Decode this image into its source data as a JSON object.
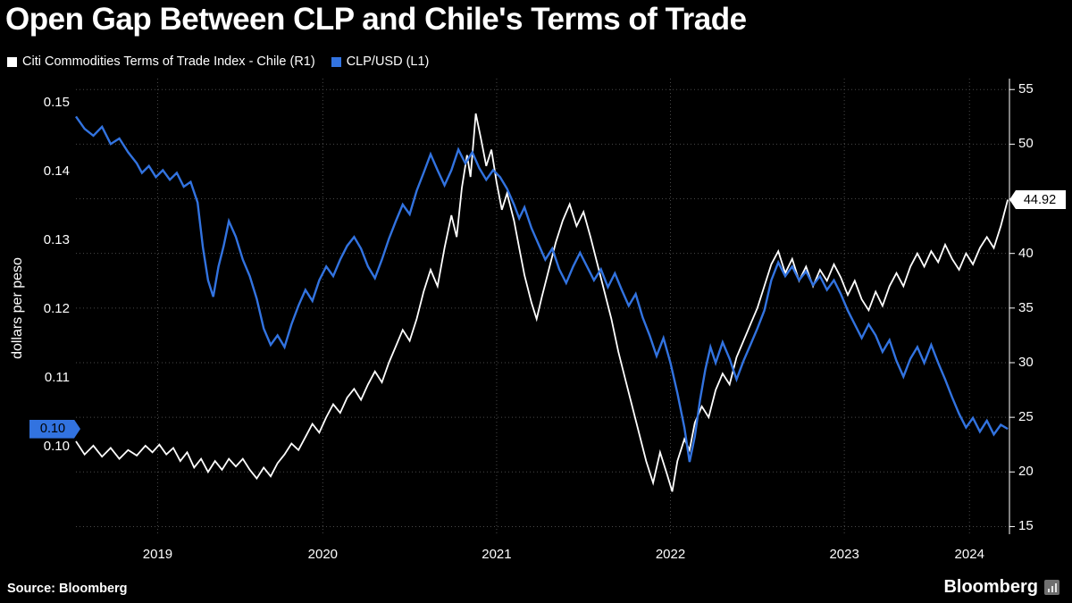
{
  "header": {
    "title": "Open Gap Between CLP and Chile's Terms of Trade"
  },
  "legend": {
    "items": [
      {
        "label": "Citi Commodities Terms of Trade Index - Chile (R1)",
        "color": "#ffffff"
      },
      {
        "label": "CLP/USD (L1)",
        "color": "#3273e0"
      }
    ]
  },
  "footer": {
    "source": "Source: Bloomberg",
    "logo": "Bloomberg"
  },
  "chart_data": {
    "type": "line",
    "title": "Open Gap Between CLP and Chile's Terms of Trade",
    "grid": "dotted",
    "background": "#000000",
    "x_range": [
      2019.08,
      2024.45
    ],
    "x_ticks": [
      {
        "label": "2019",
        "pos": 2019.55
      },
      {
        "label": "2020",
        "pos": 2020.5
      },
      {
        "label": "2021",
        "pos": 2021.5
      },
      {
        "label": "2022",
        "pos": 2022.5
      },
      {
        "label": "2023",
        "pos": 2023.5
      },
      {
        "label": "2024",
        "pos": 2024.22
      }
    ],
    "left_axis": {
      "title": "dollars per peso",
      "range": [
        0.0873,
        0.1535
      ],
      "ticks": [
        0.15,
        0.14,
        0.13,
        0.12,
        0.11,
        0.1
      ],
      "badge": {
        "label": "0.10",
        "value": 0.1026,
        "color": "#3273e0"
      }
    },
    "right_axis": {
      "range": [
        14.3,
        56.0
      ],
      "ticks": [
        55,
        50,
        45,
        40,
        35,
        30,
        25,
        20,
        15
      ],
      "badge": {
        "label": "44.92",
        "value": 44.92,
        "color": "#ffffff"
      }
    },
    "series": [
      {
        "name": "Citi Commodities Terms of Trade Index - Chile (R1)",
        "axis": "right",
        "color": "#ffffff",
        "width": 1.8,
        "points": [
          [
            2019.08,
            22.8
          ],
          [
            2019.13,
            21.6
          ],
          [
            2019.18,
            22.4
          ],
          [
            2019.23,
            21.4
          ],
          [
            2019.28,
            22.2
          ],
          [
            2019.33,
            21.2
          ],
          [
            2019.38,
            22.0
          ],
          [
            2019.43,
            21.5
          ],
          [
            2019.48,
            22.4
          ],
          [
            2019.52,
            21.8
          ],
          [
            2019.56,
            22.5
          ],
          [
            2019.6,
            21.6
          ],
          [
            2019.64,
            22.2
          ],
          [
            2019.68,
            21.0
          ],
          [
            2019.72,
            21.8
          ],
          [
            2019.76,
            20.4
          ],
          [
            2019.8,
            21.2
          ],
          [
            2019.84,
            20.0
          ],
          [
            2019.88,
            21.0
          ],
          [
            2019.92,
            20.2
          ],
          [
            2019.96,
            21.2
          ],
          [
            2020.0,
            20.5
          ],
          [
            2020.04,
            21.2
          ],
          [
            2020.08,
            20.2
          ],
          [
            2020.12,
            19.4
          ],
          [
            2020.16,
            20.4
          ],
          [
            2020.2,
            19.6
          ],
          [
            2020.24,
            20.8
          ],
          [
            2020.28,
            21.6
          ],
          [
            2020.32,
            22.6
          ],
          [
            2020.36,
            22.0
          ],
          [
            2020.4,
            23.2
          ],
          [
            2020.44,
            24.4
          ],
          [
            2020.48,
            23.6
          ],
          [
            2020.52,
            25.0
          ],
          [
            2020.56,
            26.2
          ],
          [
            2020.6,
            25.4
          ],
          [
            2020.64,
            26.8
          ],
          [
            2020.68,
            27.6
          ],
          [
            2020.72,
            26.6
          ],
          [
            2020.76,
            28.0
          ],
          [
            2020.8,
            29.2
          ],
          [
            2020.84,
            28.2
          ],
          [
            2020.88,
            30.0
          ],
          [
            2020.92,
            31.5
          ],
          [
            2020.96,
            33.0
          ],
          [
            2021.0,
            32.0
          ],
          [
            2021.04,
            34.0
          ],
          [
            2021.08,
            36.5
          ],
          [
            2021.12,
            38.5
          ],
          [
            2021.16,
            37.0
          ],
          [
            2021.2,
            40.5
          ],
          [
            2021.24,
            43.5
          ],
          [
            2021.27,
            41.5
          ],
          [
            2021.3,
            46.0
          ],
          [
            2021.33,
            49.0
          ],
          [
            2021.35,
            47.0
          ],
          [
            2021.38,
            52.8
          ],
          [
            2021.41,
            50.5
          ],
          [
            2021.44,
            48.0
          ],
          [
            2021.47,
            49.5
          ],
          [
            2021.5,
            46.5
          ],
          [
            2021.53,
            44.0
          ],
          [
            2021.56,
            45.5
          ],
          [
            2021.6,
            43.0
          ],
          [
            2021.63,
            40.5
          ],
          [
            2021.66,
            38.0
          ],
          [
            2021.7,
            35.5
          ],
          [
            2021.73,
            34.0
          ],
          [
            2021.76,
            36.0
          ],
          [
            2021.8,
            38.5
          ],
          [
            2021.84,
            41.0
          ],
          [
            2021.88,
            43.0
          ],
          [
            2021.92,
            44.5
          ],
          [
            2021.96,
            42.5
          ],
          [
            2022.0,
            43.8
          ],
          [
            2022.04,
            41.5
          ],
          [
            2022.08,
            39.0
          ],
          [
            2022.12,
            36.5
          ],
          [
            2022.16,
            34.0
          ],
          [
            2022.2,
            31.0
          ],
          [
            2022.24,
            28.5
          ],
          [
            2022.28,
            26.0
          ],
          [
            2022.32,
            23.5
          ],
          [
            2022.36,
            21.0
          ],
          [
            2022.4,
            19.0
          ],
          [
            2022.44,
            21.8
          ],
          [
            2022.48,
            19.8
          ],
          [
            2022.51,
            18.2
          ],
          [
            2022.54,
            21.0
          ],
          [
            2022.58,
            23.0
          ],
          [
            2022.61,
            22.0
          ],
          [
            2022.64,
            24.5
          ],
          [
            2022.68,
            26.0
          ],
          [
            2022.72,
            25.0
          ],
          [
            2022.76,
            27.5
          ],
          [
            2022.8,
            29.0
          ],
          [
            2022.84,
            28.0
          ],
          [
            2022.88,
            30.5
          ],
          [
            2022.92,
            32.0
          ],
          [
            2022.96,
            33.5
          ],
          [
            2023.0,
            35.0
          ],
          [
            2023.04,
            37.0
          ],
          [
            2023.08,
            39.0
          ],
          [
            2023.12,
            40.2
          ],
          [
            2023.16,
            38.2
          ],
          [
            2023.2,
            39.5
          ],
          [
            2023.24,
            37.5
          ],
          [
            2023.28,
            38.8
          ],
          [
            2023.32,
            37.0
          ],
          [
            2023.36,
            38.5
          ],
          [
            2023.4,
            37.5
          ],
          [
            2023.44,
            39.0
          ],
          [
            2023.48,
            37.8
          ],
          [
            2023.52,
            36.2
          ],
          [
            2023.56,
            37.5
          ],
          [
            2023.6,
            35.8
          ],
          [
            2023.64,
            34.8
          ],
          [
            2023.68,
            36.5
          ],
          [
            2023.72,
            35.2
          ],
          [
            2023.76,
            37.0
          ],
          [
            2023.8,
            38.2
          ],
          [
            2023.84,
            37.0
          ],
          [
            2023.88,
            38.8
          ],
          [
            2023.92,
            40.0
          ],
          [
            2023.96,
            38.8
          ],
          [
            2024.0,
            40.2
          ],
          [
            2024.04,
            39.2
          ],
          [
            2024.08,
            40.8
          ],
          [
            2024.12,
            39.5
          ],
          [
            2024.16,
            38.5
          ],
          [
            2024.2,
            40.0
          ],
          [
            2024.24,
            39.0
          ],
          [
            2024.28,
            40.5
          ],
          [
            2024.32,
            41.5
          ],
          [
            2024.36,
            40.5
          ],
          [
            2024.4,
            42.5
          ],
          [
            2024.44,
            44.92
          ]
        ]
      },
      {
        "name": "CLP/USD (L1)",
        "axis": "left",
        "color": "#3273e0",
        "width": 2.4,
        "points": [
          [
            2019.08,
            0.148
          ],
          [
            2019.13,
            0.1462
          ],
          [
            2019.18,
            0.1452
          ],
          [
            2019.23,
            0.1465
          ],
          [
            2019.28,
            0.144
          ],
          [
            2019.33,
            0.1448
          ],
          [
            2019.38,
            0.1428
          ],
          [
            2019.43,
            0.1412
          ],
          [
            2019.46,
            0.1398
          ],
          [
            2019.5,
            0.1408
          ],
          [
            2019.54,
            0.1392
          ],
          [
            2019.58,
            0.1402
          ],
          [
            2019.62,
            0.1388
          ],
          [
            2019.66,
            0.1398
          ],
          [
            2019.7,
            0.1378
          ],
          [
            2019.74,
            0.1385
          ],
          [
            2019.78,
            0.1355
          ],
          [
            2019.81,
            0.129
          ],
          [
            2019.84,
            0.1242
          ],
          [
            2019.87,
            0.1218
          ],
          [
            2019.9,
            0.1262
          ],
          [
            2019.93,
            0.1292
          ],
          [
            2019.96,
            0.1328
          ],
          [
            2020.0,
            0.1305
          ],
          [
            2020.04,
            0.1272
          ],
          [
            2020.08,
            0.1248
          ],
          [
            2020.12,
            0.1215
          ],
          [
            2020.16,
            0.1172
          ],
          [
            2020.2,
            0.1148
          ],
          [
            2020.24,
            0.1162
          ],
          [
            2020.28,
            0.1145
          ],
          [
            2020.32,
            0.1178
          ],
          [
            2020.36,
            0.1205
          ],
          [
            2020.4,
            0.1228
          ],
          [
            2020.44,
            0.1212
          ],
          [
            2020.48,
            0.1242
          ],
          [
            2020.52,
            0.1262
          ],
          [
            2020.56,
            0.1248
          ],
          [
            2020.6,
            0.1272
          ],
          [
            2020.64,
            0.1292
          ],
          [
            2020.68,
            0.1305
          ],
          [
            2020.72,
            0.1288
          ],
          [
            2020.76,
            0.1262
          ],
          [
            2020.8,
            0.1245
          ],
          [
            2020.84,
            0.1272
          ],
          [
            2020.88,
            0.1302
          ],
          [
            2020.92,
            0.1328
          ],
          [
            2020.96,
            0.1352
          ],
          [
            2021.0,
            0.1338
          ],
          [
            2021.04,
            0.1372
          ],
          [
            2021.08,
            0.1398
          ],
          [
            2021.12,
            0.1425
          ],
          [
            2021.16,
            0.1402
          ],
          [
            2021.2,
            0.138
          ],
          [
            2021.24,
            0.1402
          ],
          [
            2021.28,
            0.1432
          ],
          [
            2021.32,
            0.1412
          ],
          [
            2021.36,
            0.1428
          ],
          [
            2021.4,
            0.1405
          ],
          [
            2021.44,
            0.1388
          ],
          [
            2021.48,
            0.1402
          ],
          [
            2021.52,
            0.1392
          ],
          [
            2021.56,
            0.1375
          ],
          [
            2021.6,
            0.1352
          ],
          [
            2021.63,
            0.1332
          ],
          [
            2021.66,
            0.1348
          ],
          [
            2021.7,
            0.1318
          ],
          [
            2021.74,
            0.1295
          ],
          [
            2021.78,
            0.1272
          ],
          [
            2021.82,
            0.1288
          ],
          [
            2021.86,
            0.1258
          ],
          [
            2021.9,
            0.1238
          ],
          [
            2021.94,
            0.1262
          ],
          [
            2021.98,
            0.1282
          ],
          [
            2022.02,
            0.1262
          ],
          [
            2022.06,
            0.1242
          ],
          [
            2022.1,
            0.1258
          ],
          [
            2022.14,
            0.1232
          ],
          [
            2022.18,
            0.1252
          ],
          [
            2022.22,
            0.1228
          ],
          [
            2022.26,
            0.1205
          ],
          [
            2022.3,
            0.1222
          ],
          [
            2022.34,
            0.1188
          ],
          [
            2022.38,
            0.1162
          ],
          [
            2022.42,
            0.1132
          ],
          [
            2022.46,
            0.1158
          ],
          [
            2022.5,
            0.1122
          ],
          [
            2022.54,
            0.1078
          ],
          [
            2022.58,
            0.1028
          ],
          [
            2022.61,
            0.0978
          ],
          [
            2022.64,
            0.1015
          ],
          [
            2022.67,
            0.1068
          ],
          [
            2022.7,
            0.1112
          ],
          [
            2022.73,
            0.1145
          ],
          [
            2022.76,
            0.1122
          ],
          [
            2022.8,
            0.1152
          ],
          [
            2022.84,
            0.1128
          ],
          [
            2022.88,
            0.1098
          ],
          [
            2022.92,
            0.1125
          ],
          [
            2022.96,
            0.1148
          ],
          [
            2023.0,
            0.1172
          ],
          [
            2023.04,
            0.1198
          ],
          [
            2023.08,
            0.1242
          ],
          [
            2023.12,
            0.1268
          ],
          [
            2023.16,
            0.1248
          ],
          [
            2023.2,
            0.1262
          ],
          [
            2023.24,
            0.1242
          ],
          [
            2023.28,
            0.1255
          ],
          [
            2023.32,
            0.1235
          ],
          [
            2023.36,
            0.1248
          ],
          [
            2023.4,
            0.1228
          ],
          [
            2023.44,
            0.1242
          ],
          [
            2023.48,
            0.1222
          ],
          [
            2023.52,
            0.1198
          ],
          [
            2023.56,
            0.1178
          ],
          [
            2023.6,
            0.1158
          ],
          [
            2023.64,
            0.1178
          ],
          [
            2023.68,
            0.1162
          ],
          [
            2023.72,
            0.1138
          ],
          [
            2023.76,
            0.1155
          ],
          [
            2023.8,
            0.1125
          ],
          [
            2023.84,
            0.1102
          ],
          [
            2023.88,
            0.1128
          ],
          [
            2023.92,
            0.1145
          ],
          [
            2023.96,
            0.1122
          ],
          [
            2024.0,
            0.1148
          ],
          [
            2024.04,
            0.1122
          ],
          [
            2024.08,
            0.1098
          ],
          [
            2024.12,
            0.1072
          ],
          [
            2024.16,
            0.1048
          ],
          [
            2024.2,
            0.1028
          ],
          [
            2024.24,
            0.1042
          ],
          [
            2024.28,
            0.1022
          ],
          [
            2024.32,
            0.1038
          ],
          [
            2024.36,
            0.1018
          ],
          [
            2024.4,
            0.1032
          ],
          [
            2024.44,
            0.1026
          ]
        ]
      }
    ]
  }
}
